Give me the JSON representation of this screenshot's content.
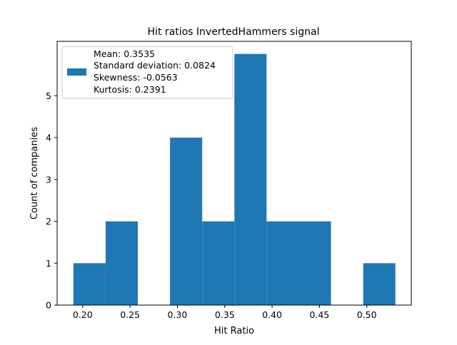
{
  "chart_data": {
    "type": "bar",
    "title": "Hit ratios InvertedHammers signal",
    "xlabel": "Hit Ratio",
    "ylabel": "Count of companies",
    "xlim": [
      0.173,
      0.547
    ],
    "ylim": [
      0,
      6.3
    ],
    "xticks": [
      0.2,
      0.25,
      0.3,
      0.35,
      0.4,
      0.45,
      0.5
    ],
    "xtick_labels": [
      "0.20",
      "0.25",
      "0.30",
      "0.35",
      "0.40",
      "0.45",
      "0.50"
    ],
    "yticks": [
      0,
      1,
      2,
      3,
      4,
      5
    ],
    "ytick_labels": [
      "0",
      "1",
      "2",
      "3",
      "4",
      "5"
    ],
    "bins": [
      {
        "start": 0.1902,
        "end": 0.2242,
        "count": 1
      },
      {
        "start": 0.2242,
        "end": 0.2582,
        "count": 2
      },
      {
        "start": 0.2582,
        "end": 0.2922,
        "count": 0
      },
      {
        "start": 0.2922,
        "end": 0.3262,
        "count": 4
      },
      {
        "start": 0.3262,
        "end": 0.3602,
        "count": 2
      },
      {
        "start": 0.3602,
        "end": 0.3942,
        "count": 6
      },
      {
        "start": 0.3942,
        "end": 0.4282,
        "count": 2
      },
      {
        "start": 0.4282,
        "end": 0.4622,
        "count": 2
      },
      {
        "start": 0.4622,
        "end": 0.4962,
        "count": 0
      },
      {
        "start": 0.4962,
        "end": 0.5302,
        "count": 1
      }
    ],
    "bar_color": "#1f77b4",
    "grid": false,
    "legend": {
      "placement": "upper-left",
      "lines": [
        "Mean: 0.3535",
        "Standard deviation: 0.0824",
        "Skewness: -0.0563",
        "Kurtosis: 0.2391"
      ]
    }
  }
}
